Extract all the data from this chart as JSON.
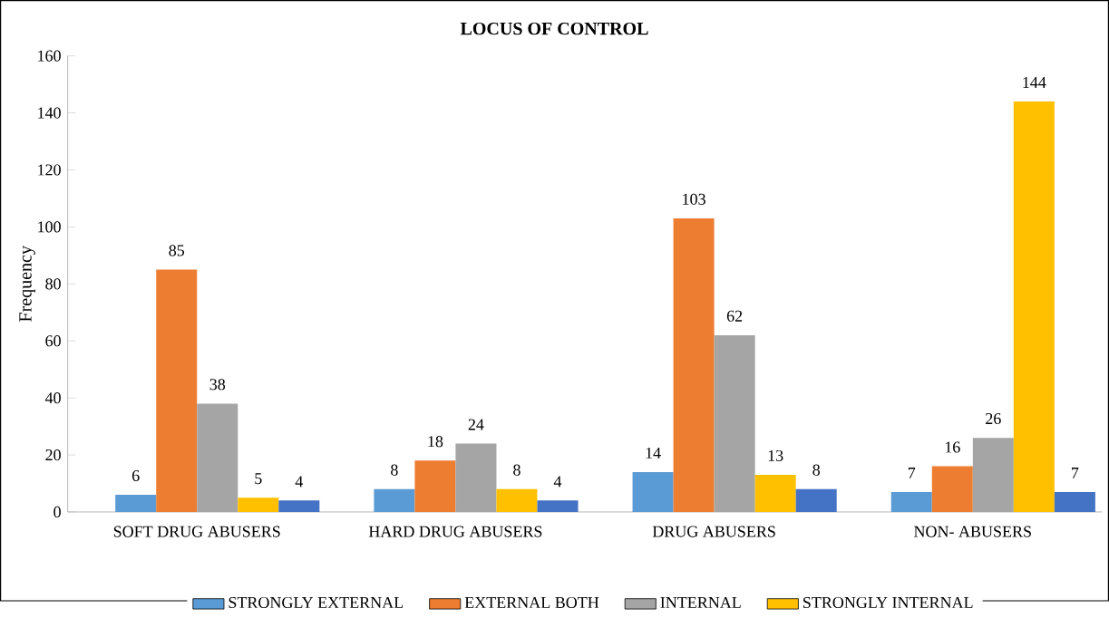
{
  "chart_data": {
    "type": "bar",
    "title": "LOCUS OF CONTROL",
    "ylabel": "Frequency",
    "categories": [
      "SOFT DRUG ABUSERS",
      "HARD DRUG ABUSERS",
      "DRUG ABUSERS",
      "NON- ABUSERS"
    ],
    "series": [
      {
        "name": "STRONGLY EXTERNAL",
        "color": "#5b9bd5",
        "values": [
          6,
          8,
          14,
          7
        ]
      },
      {
        "name": "EXTERNAL  BOTH",
        "color": "#ed7d31",
        "values": [
          85,
          18,
          103,
          16
        ]
      },
      {
        "name": "INTERNAL",
        "color": "#a5a5a5",
        "values": [
          38,
          24,
          62,
          26
        ]
      },
      {
        "name": "STRONGLY INTERNAL",
        "color": "#ffc000",
        "values": [
          5,
          8,
          13,
          144
        ]
      },
      {
        "color": "#4472c4",
        "values": [
          4,
          4,
          8,
          7
        ]
      }
    ],
    "ylim": [
      0,
      160
    ],
    "yticks": [
      0,
      20,
      40,
      60,
      80,
      100,
      120,
      140,
      160
    ],
    "data_labels": true,
    "legend": "bottom",
    "grid": false
  }
}
